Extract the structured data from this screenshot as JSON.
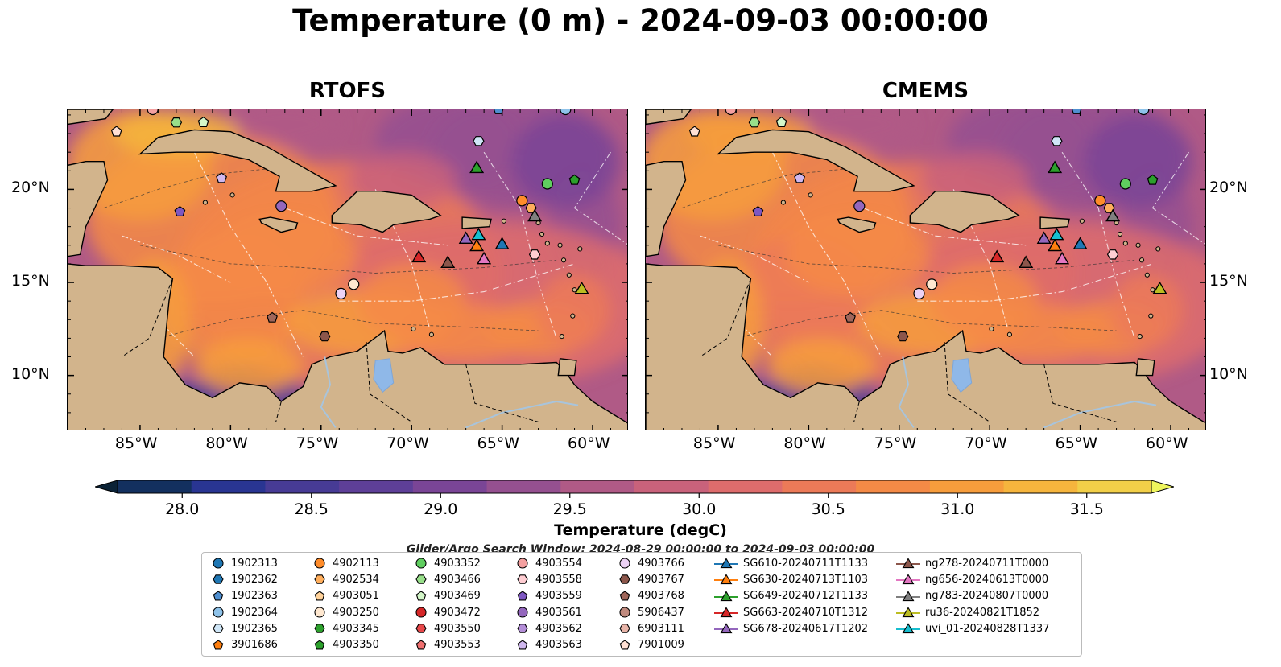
{
  "chart_data": {
    "type": "heatmap",
    "title": "Temperature (0 m) - 2024-09-03 00:00:00",
    "panels": [
      {
        "title": "RTOFS"
      },
      {
        "title": "CMEMS"
      }
    ],
    "x_ticks": [
      "85°W",
      "80°W",
      "75°W",
      "70°W",
      "65°W",
      "60°W"
    ],
    "x_tick_values": [
      -85,
      -80,
      -75,
      -70,
      -65,
      -60
    ],
    "y_ticks": [
      "10°N",
      "15°N",
      "20°N"
    ],
    "y_tick_values": [
      10,
      15,
      20
    ],
    "xlim": [
      -89,
      -58
    ],
    "ylim": [
      7,
      24.3
    ],
    "colorbar": {
      "label": "Temperature (degC)",
      "ticks": [
        "28.0",
        "28.5",
        "29.0",
        "29.5",
        "30.0",
        "30.5",
        "31.0",
        "31.5"
      ],
      "tick_values": [
        28.0,
        28.5,
        29.0,
        29.5,
        30.0,
        30.5,
        31.0,
        31.5
      ],
      "range": [
        28.0,
        31.5
      ],
      "extend": "both",
      "colors": [
        "#0b2236",
        "#13305f",
        "#293592",
        "#473b95",
        "#5e3f98",
        "#7a4596",
        "#955090",
        "#b05a86",
        "#c9627b",
        "#de6c6c",
        "#ec7a58",
        "#f48a46",
        "#f79d3c",
        "#f6b53d",
        "#f2cf48",
        "#eef55d"
      ]
    },
    "search_window": "Glider/Argo Search Window: 2024-08-29 00:00:00 to 2024-09-03 00:00:00",
    "argo_floats": [
      {
        "id": "1902313",
        "color": "#1f77b4",
        "marker": "circle",
        "lon": null,
        "lat": null
      },
      {
        "id": "1902362",
        "color": "#1f77b4",
        "marker": "hexagon",
        "lon": null,
        "lat": null
      },
      {
        "id": "1902363",
        "color": "#4f8fd0",
        "marker": "pentagon",
        "lon": -65.2,
        "lat": 24.3
      },
      {
        "id": "1902364",
        "color": "#8fc3ea",
        "marker": "circle",
        "lon": -61.5,
        "lat": 24.3
      },
      {
        "id": "1902365",
        "color": "#cfe6f7",
        "marker": "hexagon",
        "lon": -66.3,
        "lat": 22.6
      },
      {
        "id": "3901686",
        "color": "#ff7f0e",
        "marker": "pentagon",
        "lon": null,
        "lat": null
      },
      {
        "id": "4902113",
        "color": "#ff8c2a",
        "marker": "circle",
        "lon": -63.9,
        "lat": 19.4
      },
      {
        "id": "4902534",
        "color": "#ffae5c",
        "marker": "hexagon",
        "lon": -63.4,
        "lat": 19.0
      },
      {
        "id": "4903051",
        "color": "#ffd29a",
        "marker": "pentagon",
        "lon": null,
        "lat": null
      },
      {
        "id": "4903250",
        "color": "#ffe8d0",
        "marker": "circle",
        "lon": -73.2,
        "lat": 14.9
      },
      {
        "id": "4903345",
        "color": "#2ca02c",
        "marker": "hexagon",
        "lon": null,
        "lat": null
      },
      {
        "id": "4903350",
        "color": "#2ca02c",
        "marker": "pentagon",
        "lon": -61.0,
        "lat": 20.5
      },
      {
        "id": "4903352",
        "color": "#5fce5f",
        "marker": "circle",
        "lon": -62.5,
        "lat": 20.3
      },
      {
        "id": "4903466",
        "color": "#98df8a",
        "marker": "hexagon",
        "lon": -83.0,
        "lat": 23.6
      },
      {
        "id": "4903469",
        "color": "#d4f7c9",
        "marker": "pentagon",
        "lon": -81.5,
        "lat": 23.6
      },
      {
        "id": "4903472",
        "color": "#d62728",
        "marker": "circle",
        "lon": null,
        "lat": null
      },
      {
        "id": "4903550",
        "color": "#e8484a",
        "marker": "hexagon",
        "lon": null,
        "lat": null
      },
      {
        "id": "4903553",
        "color": "#f07070",
        "marker": "pentagon",
        "lon": null,
        "lat": null
      },
      {
        "id": "4903554",
        "color": "#f4a0a0",
        "marker": "circle",
        "lon": -84.3,
        "lat": 24.3
      },
      {
        "id": "4903558",
        "color": "#ffcdd2",
        "marker": "hexagon",
        "lon": -63.2,
        "lat": 16.5
      },
      {
        "id": "4903559",
        "color": "#7e57c2",
        "marker": "pentagon",
        "lon": -82.8,
        "lat": 18.8
      },
      {
        "id": "4903561",
        "color": "#9467bd",
        "marker": "circle",
        "lon": -77.2,
        "lat": 19.1
      },
      {
        "id": "4903562",
        "color": "#b48ed8",
        "marker": "hexagon",
        "lon": null,
        "lat": null
      },
      {
        "id": "4903563",
        "color": "#d0b8ef",
        "marker": "pentagon",
        "lon": -80.5,
        "lat": 20.6
      },
      {
        "id": "4903766",
        "color": "#ecd2f5",
        "marker": "circle",
        "lon": -73.9,
        "lat": 14.4
      },
      {
        "id": "4903767",
        "color": "#8c564b",
        "marker": "hexagon",
        "lon": -74.8,
        "lat": 12.1
      },
      {
        "id": "4903768",
        "color": "#a0665a",
        "marker": "pentagon",
        "lon": -77.7,
        "lat": 13.1
      },
      {
        "id": "5906437",
        "color": "#c08a7e",
        "marker": "circle",
        "lon": null,
        "lat": null
      },
      {
        "id": "6903111",
        "color": "#e8b4a8",
        "marker": "hexagon",
        "lon": null,
        "lat": null
      },
      {
        "id": "7901009",
        "color": "#ffe0d4",
        "marker": "pentagon",
        "lon": -86.3,
        "lat": 23.1
      }
    ],
    "gliders": [
      {
        "id": "SG610-20240711T1133",
        "color": "#1f77b4",
        "lon": -65.0,
        "lat": 17.1
      },
      {
        "id": "SG630-20240713T1103",
        "color": "#ff7f0e",
        "lon": -66.4,
        "lat": 17.0
      },
      {
        "id": "SG649-20240712T1133",
        "color": "#2ca02c",
        "lon": -66.4,
        "lat": 21.2
      },
      {
        "id": "SG663-20240710T1312",
        "color": "#d62728",
        "lon": -69.6,
        "lat": 16.4
      },
      {
        "id": "SG678-20240617T1202",
        "color": "#9467bd",
        "lon": -67.0,
        "lat": 17.4
      },
      {
        "id": "ng278-20240711T0000",
        "color": "#8c564b",
        "lon": -68.0,
        "lat": 16.1
      },
      {
        "id": "ng656-20240613T0000",
        "color": "#e377c2",
        "lon": -66.0,
        "lat": 16.3
      },
      {
        "id": "ng783-20240807T0000",
        "color": "#7f7f7f",
        "lon": -63.2,
        "lat": 18.6
      },
      {
        "id": "ru36-20240821T1852",
        "color": "#bcbd22",
        "lon": -60.6,
        "lat": 14.7
      },
      {
        "id": "uvi_01-20240828T1337",
        "color": "#17becf",
        "lon": -66.3,
        "lat": 17.6
      }
    ],
    "colors": {
      "land": "#d2b48c",
      "lake": "#8fb8e8",
      "river": "#a8c4dc"
    }
  }
}
